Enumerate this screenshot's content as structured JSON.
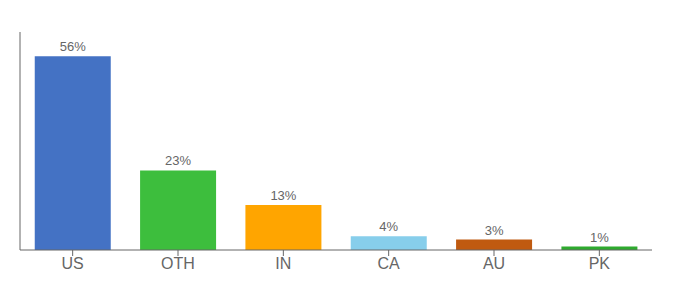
{
  "chart_data": {
    "type": "bar",
    "categories": [
      "US",
      "OTH",
      "IN",
      "CA",
      "AU",
      "PK"
    ],
    "values": [
      56,
      23,
      13,
      4,
      3,
      1
    ],
    "value_labels": [
      "56%",
      "23%",
      "13%",
      "4%",
      "3%",
      "1%"
    ],
    "colors": [
      "#4472C4",
      "#3DBE3D",
      "#FFA500",
      "#87CEEB",
      "#C05A10",
      "#2EAA2E"
    ],
    "ylim": [
      0,
      63
    ],
    "data_labels": true,
    "tick_labels": "x",
    "grid": false
  }
}
